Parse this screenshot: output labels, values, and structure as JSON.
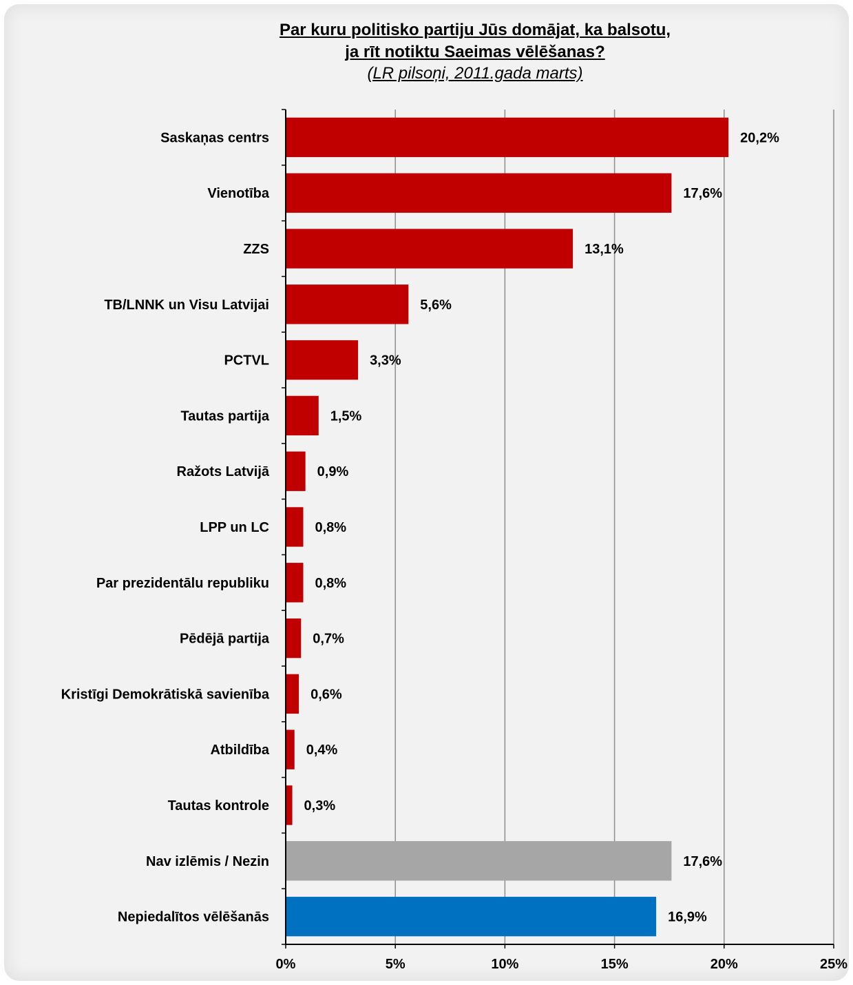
{
  "chart_data": {
    "type": "bar",
    "orientation": "horizontal",
    "title": "Par kuru politisko partiju Jūs domājat, ka balsotu,",
    "title_line2": "ja rīt notiktu Saeimas vēlēšanas?",
    "subtitle": "(LR pilsoņi, 2011.gada  marts)",
    "categories": [
      "Saskaņas centrs",
      "Vienotība",
      "ZZS",
      "TB/LNNK un Visu Latvijai",
      "PCTVL",
      "Tautas partija",
      "Ražots Latvijā",
      "LPP un LC",
      "Par prezidentālu republiku",
      "Pēdējā partija",
      "Kristīgi Demokrātiskā savienība",
      "Atbildība",
      "Tautas kontrole",
      "Nav izlēmis / Nezin",
      "Nepiedalītos vēlēšanās"
    ],
    "values": [
      20.2,
      17.6,
      13.1,
      5.6,
      3.3,
      1.5,
      0.9,
      0.8,
      0.8,
      0.7,
      0.6,
      0.4,
      0.3,
      17.6,
      16.9
    ],
    "value_labels": [
      "20,2%",
      "17,6%",
      "13,1%",
      "5,6%",
      "3,3%",
      "1,5%",
      "0,9%",
      "0,8%",
      "0,8%",
      "0,7%",
      "0,6%",
      "0,4%",
      "0,3%",
      "17,6%",
      "16,9%"
    ],
    "bar_colors": [
      "#c00000",
      "#c00000",
      "#c00000",
      "#c00000",
      "#c00000",
      "#c00000",
      "#c00000",
      "#c00000",
      "#c00000",
      "#c00000",
      "#c00000",
      "#c00000",
      "#c00000",
      "#a6a6a6",
      "#0070c0"
    ],
    "x_ticks": [
      0,
      5,
      10,
      15,
      20,
      25
    ],
    "x_tick_labels": [
      "0%",
      "5%",
      "10%",
      "15%",
      "20%",
      "25%"
    ],
    "xlim": [
      0,
      25
    ],
    "grid": "vertical"
  }
}
